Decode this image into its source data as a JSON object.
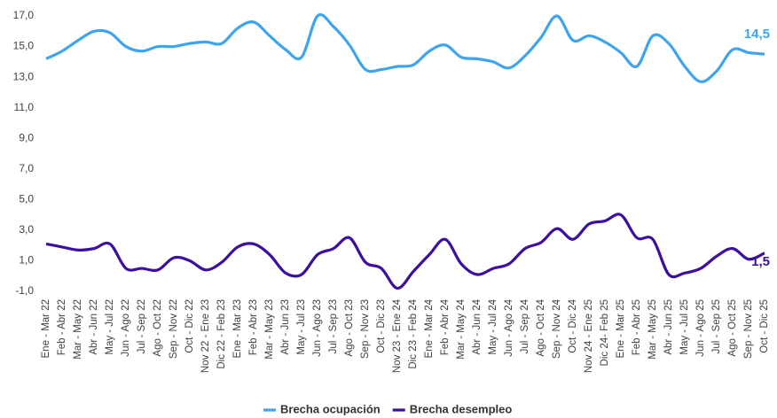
{
  "chart_data": {
    "type": "line",
    "categories": [
      "Ene - Mar 22",
      "Feb - Abr 22",
      "Mar - May 22",
      "Abr - Jun 22",
      "May - Jul 22",
      "Jun - Ago 22",
      "Jul - Sep 22",
      "Ago - Oct 22",
      "Sep - Nov 22",
      "Oct - Dic 22",
      "Nov 22 - Ene 23",
      "Dic 22 - Feb 23",
      "Ene - Mar 23",
      "Feb - Abr 23",
      "Mar - May 23",
      "Abr - Jun 23",
      "May - Jul 23",
      "Jun - Ago 23",
      "Jul - Sep 23",
      "Ago - Oct 23",
      "Sep - Nov 23",
      "Oct - Dic 23",
      "Nov 23 - Ene 24",
      "Dic 23 - Feb 24",
      "Ene - Mar 24",
      "Feb - Abr 24",
      "Mar - May 24",
      "Abr - Jun 24",
      "May - Jul 24",
      "Jun - Ago 24",
      "Jul - Sep 24",
      "Ago - Oct 24",
      "Sep - Nov 24",
      "Oct - Dic 24",
      "Nov 24 - Ene 25",
      "Dic 24- Feb 25",
      "Ene - Mar 25",
      "Feb - Abr 25",
      "Mar - May 25",
      "Abr - Jun 25",
      "May - Jul 25",
      "Jun - Ago 25",
      "Jul - Sep 25",
      "Ago - Oct 25",
      "Sep - Nov 25",
      "Oct - Dic 25"
    ],
    "series": [
      {
        "name": "Brecha ocupación",
        "color": "#3fa4f0",
        "values": [
          14.2,
          14.7,
          15.4,
          16.0,
          15.9,
          15.0,
          14.7,
          15.0,
          15.0,
          15.2,
          15.3,
          15.2,
          16.2,
          16.6,
          15.7,
          14.8,
          14.3,
          17.0,
          16.3,
          15.1,
          13.5,
          13.5,
          13.7,
          13.8,
          14.7,
          15.1,
          14.3,
          14.2,
          14.0,
          13.6,
          14.4,
          15.6,
          17.0,
          15.4,
          15.7,
          15.3,
          14.6,
          13.7,
          15.7,
          15.2,
          13.7,
          12.7,
          13.4,
          14.8,
          14.6,
          14.5
        ],
        "value_labels": [
          null,
          null,
          null,
          null,
          null,
          null,
          null,
          null,
          null,
          null,
          null,
          null,
          null,
          null,
          null,
          null,
          null,
          null,
          null,
          null,
          null,
          null,
          null,
          null,
          null,
          null,
          null,
          null,
          null,
          null,
          null,
          null,
          null,
          null,
          null,
          null,
          null,
          null,
          null,
          null,
          null,
          null,
          null,
          null,
          null,
          "14,5"
        ]
      },
      {
        "name": "Brecha desempleo",
        "color": "#3d0fa0",
        "values": [
          2.1,
          1.9,
          1.7,
          1.8,
          2.1,
          0.5,
          0.5,
          0.4,
          1.2,
          1.0,
          0.4,
          0.9,
          1.9,
          2.1,
          1.4,
          0.2,
          0.1,
          1.4,
          1.8,
          2.5,
          0.9,
          0.5,
          -0.8,
          0.3,
          1.4,
          2.4,
          0.8,
          0.1,
          0.5,
          0.8,
          1.8,
          2.2,
          3.1,
          2.4,
          3.4,
          3.6,
          4.0,
          2.5,
          2.4,
          0.1,
          0.2,
          0.5,
          1.3,
          1.8,
          1.1,
          1.5
        ],
        "value_labels": [
          null,
          null,
          null,
          null,
          null,
          null,
          null,
          null,
          null,
          null,
          null,
          null,
          null,
          null,
          null,
          null,
          null,
          null,
          null,
          null,
          null,
          null,
          null,
          null,
          null,
          null,
          null,
          null,
          null,
          null,
          null,
          null,
          null,
          null,
          null,
          null,
          null,
          null,
          null,
          null,
          null,
          null,
          null,
          null,
          null,
          "1,5"
        ]
      }
    ],
    "ylim": [
      -1,
      17
    ],
    "yticks": [
      {
        "value": -1,
        "label": "-1,0"
      },
      {
        "value": 1,
        "label": "1,0"
      },
      {
        "value": 3,
        "label": "3,0"
      },
      {
        "value": 5,
        "label": "5,0"
      },
      {
        "value": 7,
        "label": "7,0"
      },
      {
        "value": 9,
        "label": "9,0"
      },
      {
        "value": 11,
        "label": "11,0"
      },
      {
        "value": 13,
        "label": "13,0"
      },
      {
        "value": 15,
        "label": "15,0"
      },
      {
        "value": 17,
        "label": "17,0"
      }
    ],
    "grid": false,
    "legend": "bottom"
  }
}
